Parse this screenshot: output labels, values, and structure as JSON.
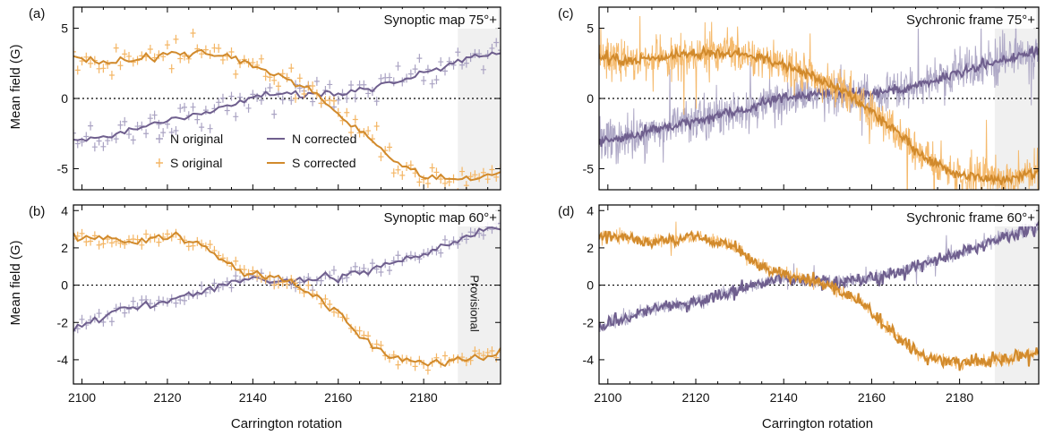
{
  "figure": {
    "xlabel": "Carrington rotation",
    "ylabel": "Mean field (G)",
    "provisional_label": "Provisional",
    "colors": {
      "north": "#6f5f8e",
      "north_light": "#aaa3c3",
      "south": "#d18a2c",
      "south_light": "#f4b665",
      "provisional_shade": "#f0f0f0"
    },
    "legend": {
      "n_original": "N original",
      "s_original": "S original",
      "n_corrected": "N corrected",
      "s_corrected": "S corrected"
    }
  },
  "chart_data": [
    {
      "type": "line",
      "panel": "(a)",
      "title": "Synoptic map 75°+",
      "xlim": [
        2098,
        2198
      ],
      "ylim": [
        -6.5,
        6.5
      ],
      "yticks": [
        -5,
        0,
        5
      ],
      "xticks": [
        2100,
        2120,
        2140,
        2160,
        2180
      ],
      "provisional_from": 2188,
      "legend": true,
      "originals": "points",
      "series": [
        {
          "name": "N corrected",
          "color": "#6f5f8e",
          "x": [
            2098,
            2105,
            2110,
            2120,
            2130,
            2140,
            2150,
            2160,
            2170,
            2180,
            2190,
            2198
          ],
          "y": [
            -3.0,
            -2.8,
            -2.3,
            -1.6,
            -0.9,
            0.1,
            0.4,
            0.3,
            0.9,
            1.8,
            2.8,
            3.4
          ]
        },
        {
          "name": "S corrected",
          "color": "#d18a2c",
          "x": [
            2098,
            2105,
            2110,
            2120,
            2128,
            2135,
            2145,
            2155,
            2165,
            2172,
            2180,
            2190,
            2198
          ],
          "y": [
            3.0,
            2.6,
            2.8,
            3.2,
            3.2,
            2.9,
            1.8,
            0.3,
            -2.2,
            -4.2,
            -5.5,
            -5.8,
            -5.3
          ]
        }
      ],
      "noise": {
        "N": 1.0,
        "S": 1.0
      }
    },
    {
      "type": "line",
      "panel": "(b)",
      "title": "Synoptic map 60°+",
      "xlim": [
        2098,
        2198
      ],
      "ylim": [
        -5.3,
        4.3
      ],
      "yticks": [
        -4,
        -2,
        0,
        2,
        4
      ],
      "xticks": [
        2100,
        2120,
        2140,
        2160,
        2180
      ],
      "provisional_from": 2188,
      "legend": false,
      "originals": "points",
      "series": [
        {
          "name": "N corrected",
          "color": "#6f5f8e",
          "x": [
            2098,
            2105,
            2110,
            2120,
            2130,
            2140,
            2150,
            2160,
            2170,
            2180,
            2190,
            2198
          ],
          "y": [
            -2.3,
            -1.7,
            -1.3,
            -0.9,
            -0.2,
            0.4,
            0.1,
            0.4,
            1.0,
            1.7,
            2.6,
            3.1
          ]
        },
        {
          "name": "S corrected",
          "color": "#d18a2c",
          "x": [
            2098,
            2105,
            2110,
            2120,
            2128,
            2135,
            2142,
            2150,
            2158,
            2165,
            2172,
            2180,
            2190,
            2198
          ],
          "y": [
            2.6,
            2.5,
            2.3,
            2.6,
            2.2,
            1.0,
            0.5,
            0.0,
            -1.0,
            -2.6,
            -3.9,
            -4.2,
            -4.0,
            -3.6
          ]
        }
      ],
      "noise": {
        "N": 0.3,
        "S": 0.3
      }
    },
    {
      "type": "line",
      "panel": "(c)",
      "title": "Sychronic frame 75°+",
      "xlim": [
        2098,
        2198
      ],
      "ylim": [
        -6.5,
        6.5
      ],
      "yticks": [
        -5,
        0,
        5
      ],
      "xticks": [
        2100,
        2120,
        2140,
        2160,
        2180
      ],
      "provisional_from": 2188,
      "legend": false,
      "originals": "noisy-line",
      "series": [
        {
          "name": "N corrected",
          "color": "#6f5f8e",
          "x": [
            2098,
            2105,
            2110,
            2120,
            2130,
            2140,
            2150,
            2160,
            2170,
            2180,
            2190,
            2198
          ],
          "y": [
            -3.0,
            -2.8,
            -2.3,
            -1.6,
            -0.9,
            0.1,
            0.4,
            0.3,
            0.9,
            1.8,
            2.8,
            3.4
          ]
        },
        {
          "name": "S corrected",
          "color": "#d18a2c",
          "x": [
            2098,
            2105,
            2110,
            2120,
            2128,
            2135,
            2145,
            2155,
            2165,
            2172,
            2180,
            2190,
            2198
          ],
          "y": [
            3.0,
            2.6,
            2.8,
            3.2,
            3.2,
            2.9,
            1.8,
            0.3,
            -2.2,
            -4.2,
            -5.5,
            -5.8,
            -5.3
          ]
        }
      ],
      "noise": {
        "N": 1.6,
        "S": 1.6
      }
    },
    {
      "type": "line",
      "panel": "(d)",
      "title": "Sychronic frame 60°+",
      "xlim": [
        2098,
        2198
      ],
      "ylim": [
        -5.3,
        4.3
      ],
      "yticks": [
        -4,
        -2,
        0,
        2,
        4
      ],
      "xticks": [
        2100,
        2120,
        2140,
        2160,
        2180
      ],
      "provisional_from": 2188,
      "legend": false,
      "originals": "noisy-line",
      "series": [
        {
          "name": "N corrected",
          "color": "#6f5f8e",
          "x": [
            2098,
            2105,
            2110,
            2120,
            2130,
            2140,
            2150,
            2160,
            2170,
            2180,
            2190,
            2198
          ],
          "y": [
            -2.3,
            -1.7,
            -1.3,
            -0.9,
            -0.2,
            0.4,
            0.1,
            0.4,
            1.0,
            1.7,
            2.6,
            3.1
          ]
        },
        {
          "name": "S corrected",
          "color": "#d18a2c",
          "x": [
            2098,
            2105,
            2110,
            2120,
            2128,
            2135,
            2142,
            2150,
            2158,
            2165,
            2172,
            2180,
            2190,
            2198
          ],
          "y": [
            2.6,
            2.5,
            2.3,
            2.6,
            2.2,
            1.0,
            0.5,
            0.0,
            -1.0,
            -2.6,
            -3.9,
            -4.2,
            -4.0,
            -3.6
          ]
        }
      ],
      "noise": {
        "N": 0.35,
        "S": 0.35
      }
    }
  ]
}
